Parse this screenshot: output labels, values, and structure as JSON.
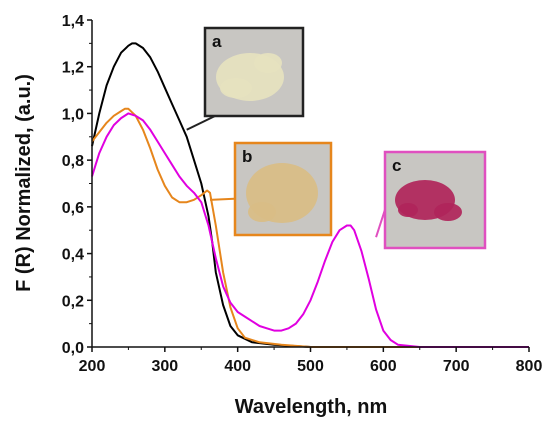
{
  "chart_data": {
    "type": "line",
    "xlabel": "Wavelength, nm",
    "ylabel": "F (R) Normalized, (a.u.)",
    "xlim": [
      200,
      800
    ],
    "ylim": [
      0.0,
      1.4
    ],
    "x_ticks": [
      200,
      300,
      400,
      500,
      600,
      700,
      800
    ],
    "y_ticks": [
      "0,0",
      "0,2",
      "0,4",
      "0,6",
      "0,8",
      "1,0",
      "1,2",
      "1,4"
    ],
    "series": [
      {
        "id": "a",
        "color": "#000000",
        "points": [
          [
            200,
            0.86
          ],
          [
            210,
            1.0
          ],
          [
            220,
            1.12
          ],
          [
            230,
            1.2
          ],
          [
            240,
            1.26
          ],
          [
            250,
            1.29
          ],
          [
            255,
            1.3
          ],
          [
            260,
            1.3
          ],
          [
            270,
            1.28
          ],
          [
            280,
            1.24
          ],
          [
            290,
            1.18
          ],
          [
            300,
            1.11
          ],
          [
            310,
            1.04
          ],
          [
            320,
            0.97
          ],
          [
            330,
            0.9
          ],
          [
            340,
            0.8
          ],
          [
            350,
            0.7
          ],
          [
            360,
            0.56
          ],
          [
            365,
            0.45
          ],
          [
            370,
            0.32
          ],
          [
            380,
            0.18
          ],
          [
            390,
            0.09
          ],
          [
            400,
            0.05
          ],
          [
            420,
            0.02
          ],
          [
            450,
            0.01
          ],
          [
            500,
            0.0
          ],
          [
            600,
            0.0
          ],
          [
            800,
            0.0
          ]
        ]
      },
      {
        "id": "b",
        "color": "#e6861c",
        "points": [
          [
            200,
            0.88
          ],
          [
            210,
            0.92
          ],
          [
            220,
            0.96
          ],
          [
            230,
            0.99
          ],
          [
            240,
            1.01
          ],
          [
            245,
            1.02
          ],
          [
            250,
            1.02
          ],
          [
            260,
            0.99
          ],
          [
            270,
            0.93
          ],
          [
            280,
            0.85
          ],
          [
            290,
            0.76
          ],
          [
            300,
            0.69
          ],
          [
            310,
            0.64
          ],
          [
            320,
            0.62
          ],
          [
            330,
            0.62
          ],
          [
            340,
            0.63
          ],
          [
            350,
            0.65
          ],
          [
            358,
            0.67
          ],
          [
            362,
            0.66
          ],
          [
            370,
            0.52
          ],
          [
            380,
            0.32
          ],
          [
            390,
            0.17
          ],
          [
            400,
            0.08
          ],
          [
            410,
            0.04
          ],
          [
            430,
            0.02
          ],
          [
            460,
            0.01
          ],
          [
            500,
            0.0
          ],
          [
            800,
            0.0
          ]
        ]
      },
      {
        "id": "c",
        "color": "#e000e0",
        "points": [
          [
            200,
            0.73
          ],
          [
            205,
            0.78
          ],
          [
            210,
            0.83
          ],
          [
            220,
            0.9
          ],
          [
            230,
            0.95
          ],
          [
            240,
            0.98
          ],
          [
            250,
            1.0
          ],
          [
            260,
            0.99
          ],
          [
            270,
            0.97
          ],
          [
            280,
            0.93
          ],
          [
            290,
            0.88
          ],
          [
            300,
            0.83
          ],
          [
            310,
            0.78
          ],
          [
            320,
            0.73
          ],
          [
            330,
            0.69
          ],
          [
            340,
            0.66
          ],
          [
            350,
            0.62
          ],
          [
            360,
            0.52
          ],
          [
            370,
            0.38
          ],
          [
            380,
            0.26
          ],
          [
            390,
            0.19
          ],
          [
            400,
            0.15
          ],
          [
            410,
            0.13
          ],
          [
            420,
            0.11
          ],
          [
            430,
            0.09
          ],
          [
            440,
            0.08
          ],
          [
            450,
            0.07
          ],
          [
            460,
            0.07
          ],
          [
            470,
            0.08
          ],
          [
            480,
            0.1
          ],
          [
            490,
            0.14
          ],
          [
            500,
            0.2
          ],
          [
            510,
            0.28
          ],
          [
            520,
            0.37
          ],
          [
            530,
            0.45
          ],
          [
            540,
            0.5
          ],
          [
            550,
            0.52
          ],
          [
            555,
            0.52
          ],
          [
            560,
            0.5
          ],
          [
            570,
            0.41
          ],
          [
            580,
            0.29
          ],
          [
            590,
            0.16
          ],
          [
            600,
            0.07
          ],
          [
            610,
            0.03
          ],
          [
            620,
            0.01
          ],
          [
            650,
            0.0
          ],
          [
            800,
            0.0
          ]
        ]
      }
    ],
    "insets": [
      {
        "label": "a",
        "border_color": "#222222",
        "sample_color": "#e6e2bf",
        "points_to": [
          330,
          0.93
        ]
      },
      {
        "label": "b",
        "border_color": "#e6861c",
        "sample_color": "#d9bd85",
        "points_to": [
          362,
          0.63
        ]
      },
      {
        "label": "c",
        "border_color": "#e050c0",
        "sample_color": "#b0245a",
        "points_to": [
          590,
          0.47
        ]
      }
    ]
  }
}
